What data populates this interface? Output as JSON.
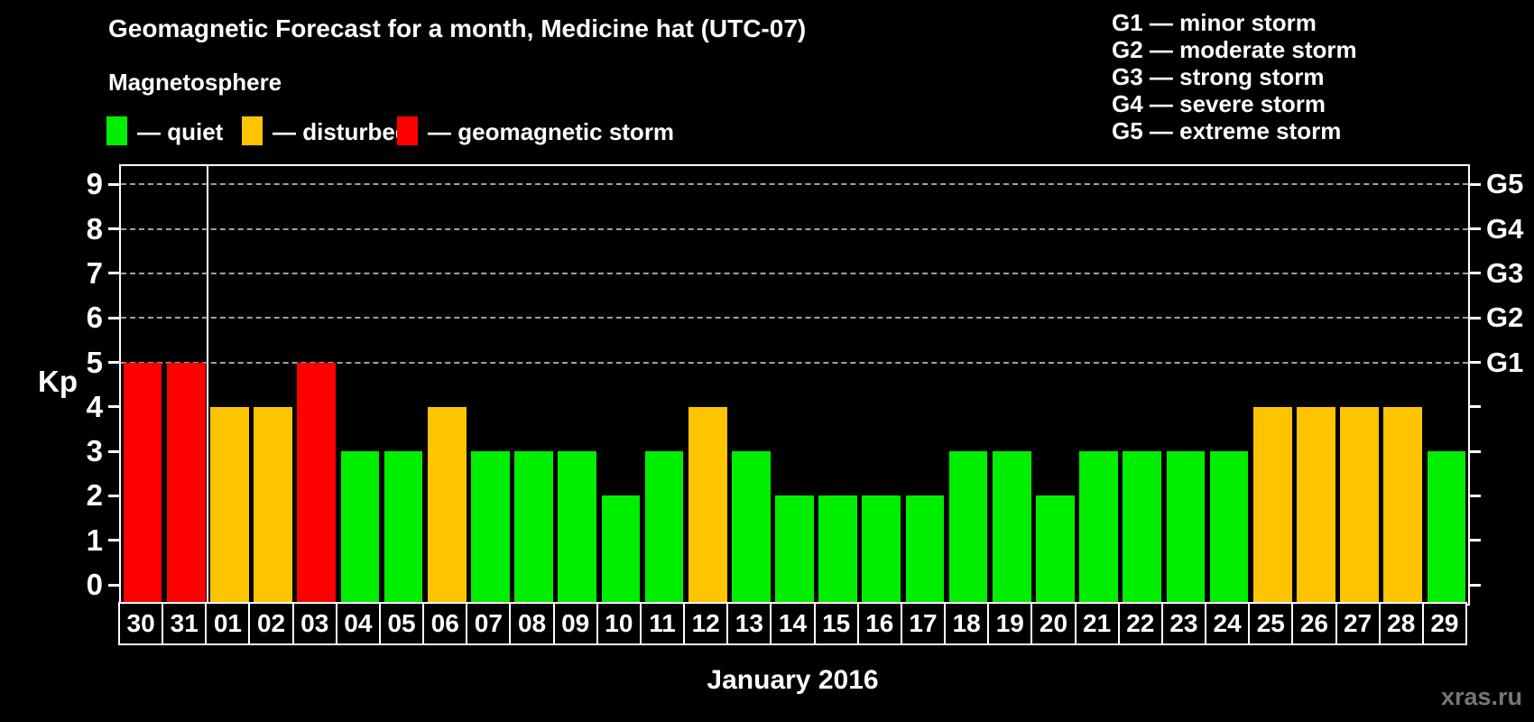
{
  "title": "Geomagnetic Forecast for a month, Medicine hat (UTC-07)",
  "subtitle": "Magnetosphere",
  "legend": {
    "items": [
      {
        "status": "quiet",
        "label": "— quiet",
        "color": "#00ee00",
        "x": 118
      },
      {
        "status": "disturbed",
        "label": "— disturbed",
        "color": "#ffc400",
        "x": 268
      },
      {
        "status": "storm",
        "label": "— geomagnetic storm",
        "color": "#ff0000",
        "x": 440
      }
    ]
  },
  "g_legend": [
    "G1 — minor storm",
    "G2 — moderate storm",
    "G3 — strong storm",
    "G4 — severe storm",
    "G5 — extreme storm"
  ],
  "watermark": "xras.ru",
  "chart_data": {
    "type": "bar",
    "title": "Geomagnetic Forecast for a month, Medicine hat (UTC-07)",
    "xlabel": "January 2016",
    "ylabel": "Kp",
    "ylim": [
      0,
      9
    ],
    "yticks": [
      0,
      1,
      2,
      3,
      4,
      5,
      6,
      7,
      8,
      9
    ],
    "gridlines_at": [
      5,
      6,
      7,
      8,
      9
    ],
    "grid": "dashed horizontal at Kp 5-9 only",
    "legend_position": "top",
    "right_axis_labels": [
      {
        "kp": 5,
        "label": "G1"
      },
      {
        "kp": 6,
        "label": "G2"
      },
      {
        "kp": 7,
        "label": "G3"
      },
      {
        "kp": 8,
        "label": "G4"
      },
      {
        "kp": 9,
        "label": "G5"
      }
    ],
    "categories": [
      "30",
      "31",
      "01",
      "02",
      "03",
      "04",
      "05",
      "06",
      "07",
      "08",
      "09",
      "10",
      "11",
      "12",
      "13",
      "14",
      "15",
      "16",
      "17",
      "18",
      "19",
      "20",
      "21",
      "22",
      "23",
      "24",
      "25",
      "26",
      "27",
      "28",
      "29"
    ],
    "values": [
      5,
      5,
      4,
      4,
      5,
      3,
      3,
      4,
      3,
      3,
      3,
      2,
      3,
      4,
      3,
      2,
      2,
      2,
      2,
      3,
      3,
      2,
      3,
      3,
      3,
      3,
      4,
      4,
      4,
      4,
      3
    ],
    "statuses": [
      "storm",
      "storm",
      "disturbed",
      "disturbed",
      "storm",
      "quiet",
      "quiet",
      "disturbed",
      "quiet",
      "quiet",
      "quiet",
      "quiet",
      "quiet",
      "disturbed",
      "quiet",
      "quiet",
      "quiet",
      "quiet",
      "quiet",
      "quiet",
      "quiet",
      "quiet",
      "quiet",
      "quiet",
      "quiet",
      "quiet",
      "disturbed",
      "disturbed",
      "disturbed",
      "disturbed",
      "quiet"
    ],
    "colors": {
      "quiet": "#00ee00",
      "disturbed": "#ffc400",
      "storm": "#ff0000"
    },
    "divider_after_index": 1
  }
}
